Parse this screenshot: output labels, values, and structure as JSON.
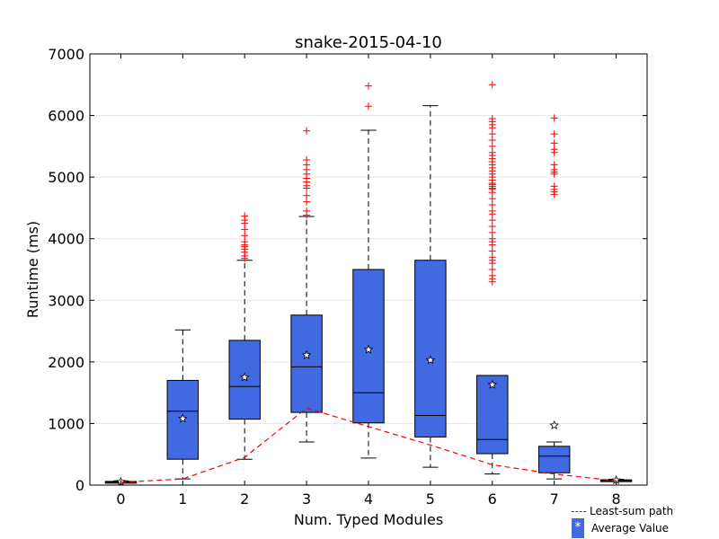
{
  "chart_data": {
    "type": "box",
    "title": "snake-2015-04-10",
    "xlabel": "Num. Typed Modules",
    "ylabel": "Runtime (ms)",
    "ylim": [
      0,
      7000
    ],
    "yticks": [
      0,
      1000,
      2000,
      3000,
      4000,
      5000,
      6000,
      7000
    ],
    "grid": "horizontal",
    "colors": {
      "box_fill": "#4169e1",
      "outlier": "#ff0000",
      "least_sum_path": "#ff0000"
    },
    "categories": [
      "0",
      "1",
      "2",
      "3",
      "4",
      "5",
      "6",
      "7",
      "8"
    ],
    "boxes": [
      {
        "whislo": 40,
        "q1": 40,
        "med": 50,
        "q3": 60,
        "whishi": 70,
        "mean": 55,
        "fliers": []
      },
      {
        "whislo": 100,
        "q1": 420,
        "med": 1200,
        "q3": 1700,
        "whishi": 2520,
        "mean": 1080,
        "fliers": []
      },
      {
        "whislo": 420,
        "q1": 1070,
        "med": 1600,
        "q3": 2350,
        "whishi": 3650,
        "mean": 1750,
        "fliers": [
          3680,
          3720,
          3780,
          3830,
          3870,
          3900,
          3950,
          4050,
          4150,
          4250,
          4300,
          4370
        ]
      },
      {
        "whislo": 700,
        "q1": 1180,
        "med": 1920,
        "q3": 2760,
        "whishi": 4360,
        "mean": 2110,
        "fliers": [
          4380,
          4450,
          4600,
          4700,
          4820,
          4860,
          4920,
          4980,
          5050,
          5120,
          5200,
          5280,
          5750
        ]
      },
      {
        "whislo": 440,
        "q1": 1010,
        "med": 1500,
        "q3": 3500,
        "whishi": 5760,
        "mean": 2200,
        "fliers": [
          6150,
          6480
        ]
      },
      {
        "whislo": 290,
        "q1": 780,
        "med": 1130,
        "q3": 3650,
        "whishi": 6160,
        "mean": 2030,
        "fliers": []
      },
      {
        "whislo": 180,
        "q1": 510,
        "med": 740,
        "q3": 1780,
        "whishi": 1780,
        "mean": 1630,
        "fliers": [
          3300,
          3350,
          3400,
          3500,
          3600,
          3650,
          3700,
          3800,
          3900,
          3950,
          4000,
          4100,
          4200,
          4300,
          4400,
          4450,
          4550,
          4650,
          4750,
          4800,
          4820,
          4850,
          4880,
          4900,
          4950,
          5000,
          5050,
          5100,
          5150,
          5200,
          5250,
          5300,
          5350,
          5400,
          5500,
          5600,
          5700,
          5800,
          5850,
          5900,
          5950,
          6500
        ]
      },
      {
        "whislo": 100,
        "q1": 200,
        "med": 470,
        "q3": 630,
        "whishi": 700,
        "mean": 970,
        "fliers": [
          4720,
          4760,
          4800,
          4850,
          5050,
          5080,
          5120,
          5200,
          5400,
          5450,
          5550,
          5700,
          5960
        ]
      },
      {
        "whislo": 60,
        "q1": 60,
        "med": 75,
        "q3": 85,
        "whishi": 95,
        "mean": 80,
        "fliers": []
      }
    ],
    "least_sum_path": {
      "x": [
        0,
        1,
        2,
        3,
        4,
        5,
        6,
        7,
        8
      ],
      "y": [
        45,
        100,
        450,
        1250,
        950,
        650,
        330,
        180,
        70
      ]
    },
    "legend": {
      "position": "bottom-right",
      "entries": [
        {
          "label": "Least-sum path",
          "marker": "dashed-line"
        },
        {
          "label": "Average Value",
          "marker": "*"
        }
      ]
    }
  }
}
